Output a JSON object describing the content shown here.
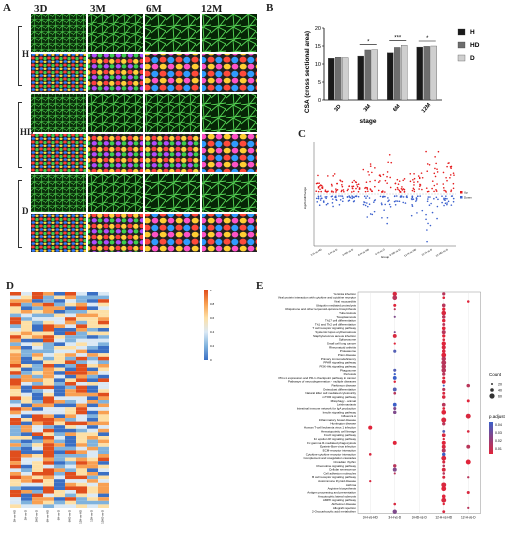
{
  "panel_a": {
    "label": "A",
    "columns": [
      "3D",
      "3M",
      "6M",
      "12M"
    ],
    "rows": [
      "H",
      "HD",
      "D"
    ]
  },
  "panel_b": {
    "label": "B",
    "chart_data": {
      "type": "bar",
      "title": "",
      "xlabel": "stage",
      "ylabel": "CSA (cross sectional area)",
      "categories": [
        "3D",
        "3M",
        "6M",
        "12M"
      ],
      "ylim": [
        0,
        20
      ],
      "yticks": [
        0,
        5,
        10,
        15,
        20
      ],
      "legend": "right",
      "series": [
        {
          "name": "H",
          "values": [
            11.6,
            12.2,
            13.1,
            14.7
          ],
          "color": "#1a1a1a"
        },
        {
          "name": "HD",
          "values": [
            11.9,
            13.9,
            14.6,
            14.9
          ],
          "color": "#6e6e6e"
        },
        {
          "name": "D",
          "values": [
            11.8,
            14.0,
            15.2,
            15.0
          ],
          "color": "#cfcfcf"
        }
      ],
      "significance": [
        "*",
        "*",
        "***",
        "*"
      ]
    }
  },
  "panel_c": {
    "label": "C",
    "chart_data": {
      "type": "scatter",
      "ylabel": "log2FoldChange",
      "xlabel": "Group",
      "categories": [
        "3-H-vs-HD",
        "3-H-vs-D",
        "3-HD-vs-D",
        "6-H-vs-HD",
        "6-H-vs-D",
        "6-HD-vs-D",
        "12-H-vs-HD",
        "12-H-vs-D",
        "12-HD-vs-D"
      ],
      "legend": [
        "Up",
        "Down"
      ],
      "colors": {
        "Up": "#e41a1c",
        "Down": "#3a5fcd"
      }
    }
  },
  "panel_d": {
    "label": "D",
    "chart_data": {
      "type": "heatmap",
      "legend_ticks": [
        "0",
        "0.2",
        "0.4",
        "0.6",
        "0.8",
        "1"
      ],
      "columns": [
        "3H-vs-HD",
        "3H-vs-D",
        "3HD-vs-D",
        "6H-vs-HD",
        "6H-vs-D",
        "6HD-vs-D",
        "12H-vs-HD",
        "12H-vs-D",
        "12HD-vs-D"
      ]
    }
  },
  "panel_e": {
    "label": "E",
    "chart_data": {
      "type": "scatter",
      "columns": [
        "3-H-vs-HD",
        "3-H-vs-D",
        "3-HD-vs-D",
        "12-H-vs-HD",
        "12-H-vs-D"
      ],
      "terms": [
        "Yersinia infection",
        "Viral protein interaction with cytokine and cytokine receptor",
        "Viral myocarditis",
        "Ubiquitin mediated proteolysis",
        "Ubiquinone and other terpenoid-quinone biosynthesis",
        "Tuberculosis",
        "Toxoplasmosis",
        "Th17 cell differentiation",
        "Th1 and Th2 cell differentiation",
        "T cell receptor signaling pathway",
        "Systemic lupus erythematosus",
        "Staphylococcus aureus infection",
        "Spliceosome",
        "Small cell lung cancer",
        "Rheumatoid arthritis",
        "Proteasome",
        "Prion disease",
        "Primary immunodeficiency",
        "PPAR signaling pathway",
        "PI3K-Akt signaling pathway",
        "Phagosome",
        "Pertussis",
        "PD-L1 expression and PD-1 checkpoint pathway in cancer",
        "Pathways of neurodegeneration - multiple diseases",
        "Parkinson disease",
        "Osteoclast differentiation",
        "Natural killer cell mediated cytotoxicity",
        "mTOR signaling pathway",
        "Mitophagy - animal",
        "Leishmaniasis",
        "Intestinal immune network for IgA production",
        "Insulin signaling pathway",
        "Influenza A",
        "Inflammatory bowel disease",
        "Huntington disease",
        "Human T-cell leukemia virus 1 infection",
        "Hematopoietic cell lineage",
        "FoxO signaling pathway",
        "Fc epsilon RI signaling pathway",
        "Fc gamma R-mediated phagocytosis",
        "Epstein-Barr virus infection",
        "ECM-receptor interaction",
        "Cytokine-cytokine receptor interaction",
        "Complement and coagulation cascades",
        "Circadian rhythm",
        "Chemokine signaling pathway",
        "Cellular senescence",
        "Cell adhesion molecules",
        "B cell receptor signaling pathway",
        "Autoimmune thyroid disease",
        "Asthma",
        "Arginine biosynthesis",
        "Antigen processing and presentation",
        "Amyotrophic lateral sclerosis",
        "AMPK signaling pathway",
        "Alzheimer disease",
        "Allograft rejection",
        "2-Oxocarboxylic acid metabolism"
      ],
      "size_legend": {
        "title": "Count",
        "values": [
          "20",
          "40",
          "60"
        ]
      },
      "color_legend": {
        "title": "p.adjust",
        "values": [
          "0.04",
          "0.03",
          "0.02",
          "0.01"
        ]
      }
    }
  }
}
